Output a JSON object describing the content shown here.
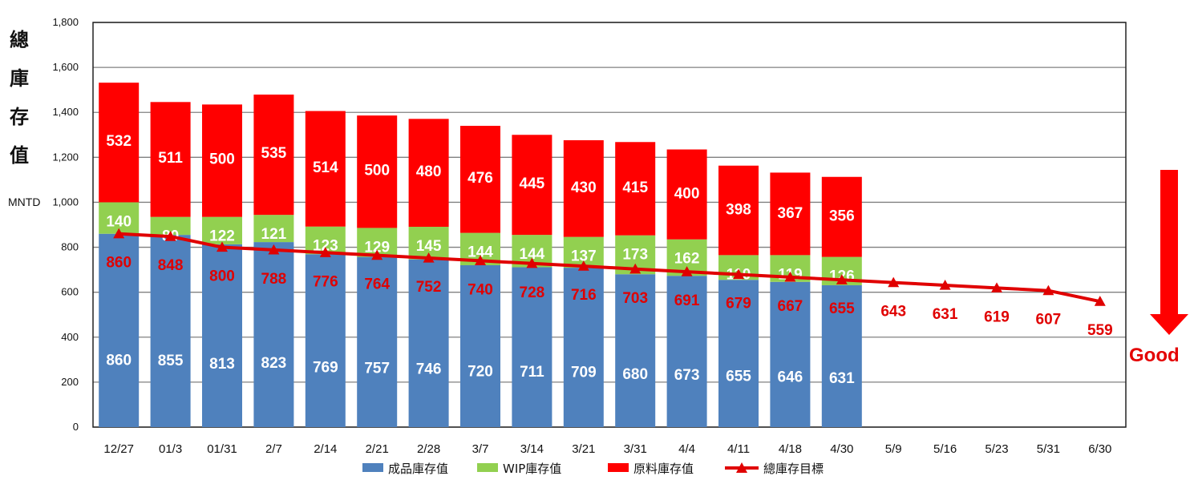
{
  "y_axis_title_chars": [
    "總",
    "庫",
    "存",
    "值"
  ],
  "unit": "MNTD",
  "good_label": "Good",
  "colors": {
    "finished": "#4f81bd",
    "wip": "#92d050",
    "raw": "#ff0000",
    "target": "#e00000",
    "grid": "#808080",
    "arrow": "#ff0000",
    "good": "#e40000"
  },
  "chart_data": {
    "type": "bar",
    "stacked": true,
    "categories": [
      "12/27",
      "01/3",
      "01/31",
      "2/7",
      "2/14",
      "2/21",
      "2/28",
      "3/7",
      "3/14",
      "3/21",
      "3/31",
      "4/4",
      "4/11",
      "4/18",
      "4/30",
      "5/9",
      "5/16",
      "5/23",
      "5/31",
      "6/30"
    ],
    "ylim": [
      0,
      1800
    ],
    "yticks": [
      0,
      200,
      400,
      600,
      800,
      1000,
      1200,
      1400,
      1600,
      1800
    ],
    "ytick_labels": [
      "0",
      "200",
      "400",
      "600",
      "800",
      "1,000",
      "1,200",
      "1,400",
      "1,600",
      "1,800"
    ],
    "grid": true,
    "legend_position": "bottom",
    "series": [
      {
        "name": "成品庫存值",
        "type": "bar",
        "values": [
          860,
          855,
          813,
          823,
          769,
          757,
          746,
          720,
          711,
          709,
          680,
          673,
          655,
          646,
          631,
          null,
          null,
          null,
          null,
          null
        ]
      },
      {
        "name": "WIP庫存值",
        "type": "bar",
        "values": [
          140,
          80,
          122,
          121,
          123,
          129,
          145,
          144,
          144,
          137,
          173,
          162,
          110,
          119,
          126,
          null,
          null,
          null,
          null,
          null
        ]
      },
      {
        "name": "原料庫存值",
        "type": "bar",
        "values": [
          532,
          511,
          500,
          535,
          514,
          500,
          480,
          476,
          445,
          430,
          415,
          400,
          398,
          367,
          356,
          null,
          null,
          null,
          null,
          null
        ]
      },
      {
        "name": "總庫存目標",
        "type": "line",
        "values": [
          860,
          848,
          800,
          788,
          776,
          764,
          752,
          740,
          728,
          716,
          703,
          691,
          679,
          667,
          655,
          643,
          631,
          619,
          607,
          559
        ]
      }
    ]
  }
}
